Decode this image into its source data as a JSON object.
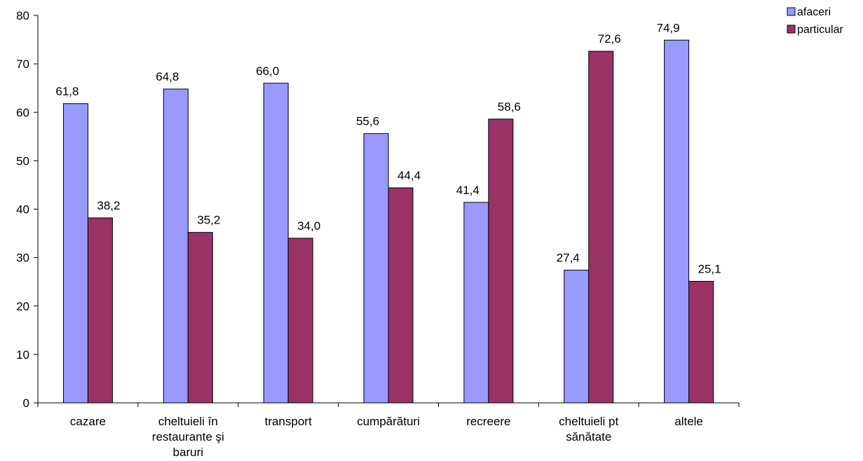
{
  "chart_data": {
    "type": "bar",
    "title": "",
    "xlabel": "",
    "ylabel": "",
    "ylim": [
      0,
      80
    ],
    "yticks": [
      0,
      10,
      20,
      30,
      40,
      50,
      60,
      70,
      80
    ],
    "grid": false,
    "legend_position": "top-right",
    "categories": [
      [
        "cazare"
      ],
      [
        "cheltuieli în",
        "restaurante şi",
        "baruri"
      ],
      [
        "transport"
      ],
      [
        "cumpărături"
      ],
      [
        "recreere"
      ],
      [
        "cheltuieli pt",
        "sănătate"
      ],
      [
        "altele"
      ]
    ],
    "series": [
      {
        "name": "afaceri",
        "color": "#9999ff",
        "values": [
          61.8,
          64.8,
          66.0,
          55.6,
          41.4,
          27.4,
          74.9
        ],
        "labels": [
          "61,8",
          "64,8",
          "66,0",
          "55,6",
          "41,4",
          "27,4",
          "74,9"
        ]
      },
      {
        "name": "particular",
        "color": "#993366",
        "values": [
          38.2,
          35.2,
          34.0,
          44.4,
          58.6,
          72.6,
          25.1
        ],
        "labels": [
          "38,2",
          "35,2",
          "34,0",
          "44,4",
          "58,6",
          "72,6",
          "25,1"
        ]
      }
    ]
  }
}
